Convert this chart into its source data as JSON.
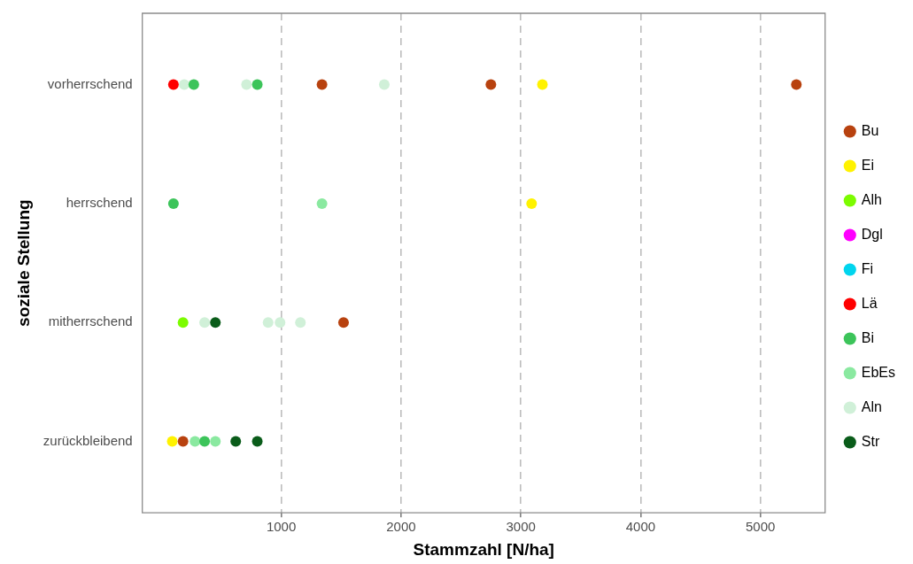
{
  "chart_data": {
    "type": "scatter",
    "orientation": "horizontal",
    "xlabel": "Stammzahl [N/ha]",
    "ylabel": "soziale Stellung",
    "categories": [
      "vorherrschend",
      "herrschend",
      "mitherrschend",
      "zurückbleibend"
    ],
    "xlim": [
      -160,
      5540
    ],
    "xticks": [
      1000,
      2000,
      3000,
      4000,
      5000
    ],
    "grid": "x",
    "legend": "right",
    "marker": "circle",
    "series": [
      {
        "name": "Bu",
        "color": "#b8420f",
        "values": [
          1340,
          2750,
          5300,
          1520,
          180
        ],
        "x": [
          "vorherrschend",
          "vorherrschend",
          "vorherrschend",
          "mitherrschend",
          "zurückbleibend"
        ]
      },
      {
        "name": "Ei",
        "color": "#fff200",
        "values": [
          3180,
          3090,
          90
        ],
        "x": [
          "vorherrschend",
          "herrschend",
          "zurückbleibend"
        ]
      },
      {
        "name": "Alh",
        "color": "#7cfc00",
        "values": [
          180
        ],
        "x": [
          "mitherrschend"
        ]
      },
      {
        "name": "Dgl",
        "color": "#ff00ff",
        "values": [
          null,
          null,
          null,
          null
        ]
      },
      {
        "name": "Fi",
        "color": "#00d5ee",
        "values": [
          null,
          null,
          null,
          null
        ]
      },
      {
        "name": "Lä",
        "color": "#ff0000",
        "values": [
          100
        ],
        "x": [
          "vorherrschend"
        ]
      },
      {
        "name": "Bi",
        "color": "#3cc45a",
        "values": [
          270,
          800,
          100,
          360
        ],
        "x": [
          "vorherrschend",
          "vorherrschend",
          "herrschend",
          "zurückbleibend"
        ]
      },
      {
        "name": "EbEs",
        "color": "#8ae9a0",
        "values": [
          1340,
          280,
          450
        ],
        "x": [
          "herrschend",
          "zurückbleibend",
          "zurückbleibend"
        ]
      },
      {
        "name": "Aln",
        "color": "#d0f0d8",
        "values": [
          190,
          710,
          1860,
          360,
          890,
          990,
          1160
        ],
        "x": [
          "vorherrschend",
          "vorherrschend",
          "vorherrschend",
          "mitherrschend",
          "mitherrschend",
          "mitherrschend",
          "mitherrschend"
        ]
      },
      {
        "name": "Str",
        "color": "#0a5c1a",
        "values": [
          450,
          620,
          800
        ],
        "x": [
          "mitherrschend",
          "zurückbleibend",
          "zurückbleibend"
        ]
      }
    ]
  }
}
